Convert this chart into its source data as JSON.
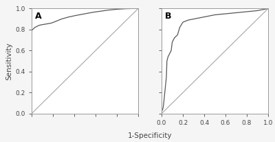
{
  "panel_A_roc": {
    "fpr": [
      0.0,
      0.0,
      0.01,
      0.02,
      0.03,
      0.05,
      0.07,
      0.09,
      0.12,
      0.15,
      0.18,
      0.22,
      0.28,
      0.35,
      0.42,
      0.5,
      0.58,
      0.65,
      0.72,
      0.8,
      0.88,
      0.95,
      1.0
    ],
    "tpr": [
      0.77,
      0.79,
      0.8,
      0.81,
      0.82,
      0.83,
      0.84,
      0.845,
      0.85,
      0.855,
      0.86,
      0.875,
      0.9,
      0.92,
      0.935,
      0.95,
      0.965,
      0.975,
      0.985,
      0.993,
      0.998,
      1.0,
      1.0
    ]
  },
  "panel_B_roc": {
    "fpr": [
      0.0,
      0.0,
      0.005,
      0.01,
      0.015,
      0.02,
      0.025,
      0.03,
      0.035,
      0.04,
      0.045,
      0.05,
      0.055,
      0.06,
      0.07,
      0.08,
      0.09,
      0.1,
      0.12,
      0.15,
      0.17,
      0.2,
      0.25,
      0.3,
      0.4,
      0.5,
      0.6,
      0.7,
      0.8,
      0.9,
      1.0
    ],
    "tpr": [
      0.0,
      0.02,
      0.03,
      0.04,
      0.06,
      0.1,
      0.15,
      0.2,
      0.25,
      0.3,
      0.35,
      0.5,
      0.52,
      0.54,
      0.56,
      0.58,
      0.6,
      0.68,
      0.72,
      0.75,
      0.82,
      0.87,
      0.89,
      0.9,
      0.92,
      0.94,
      0.95,
      0.96,
      0.97,
      0.98,
      1.0
    ]
  },
  "line_color": "#555555",
  "diagonal_color": "#aaaaaa",
  "bg_color": "#f5f5f5",
  "plot_bg_color": "#ffffff",
  "border_color": "#999999",
  "tick_color": "#444444",
  "axis_label_fontsize": 7.5,
  "tick_fontsize": 6.5,
  "panel_label_fontsize": 9,
  "xlabel": "1-Specificity",
  "ylabel": "Sensitivity",
  "label_A": "A",
  "label_B": "B"
}
